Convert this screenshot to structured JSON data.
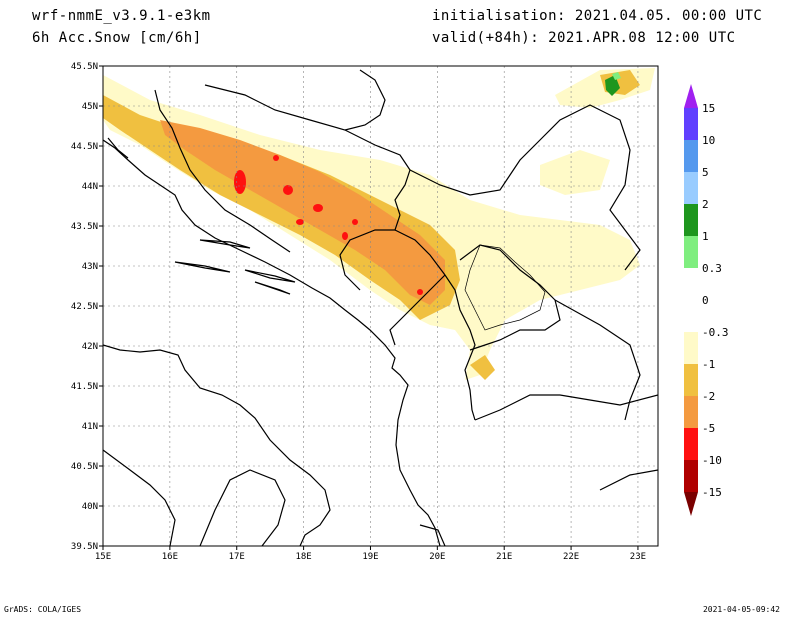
{
  "header": {
    "model": "wrf-nmmE_v3.9.1-e3km",
    "variable": "6h Acc.Snow [cm/6h]",
    "initialisation": "initialisation: 2021.04.05.  00:00 UTC",
    "valid": "valid(+84h): 2021.APR.08 12:00 UTC"
  },
  "footer": {
    "software": "GrADS: COLA/IGES",
    "timestamp": "2021-04-05-09:42"
  },
  "map": {
    "region": "Western Balkans",
    "lon_range": [
      15,
      23.3
    ],
    "lat_range": [
      39.5,
      45.5
    ],
    "lon_ticks": [
      "15E",
      "16E",
      "17E",
      "18E",
      "19E",
      "20E",
      "21E",
      "22E",
      "23E"
    ],
    "lat_ticks": [
      "39.5N",
      "40N",
      "40.5N",
      "41N",
      "41.5N",
      "42N",
      "42.5N",
      "43N",
      "43.5N",
      "44N",
      "44.5N",
      "45N",
      "45.5N"
    ],
    "grid": true,
    "colors": {
      "very_light": "#fffac8",
      "light": "#f0c040",
      "medium": "#f49a40",
      "heavy": "#ff1010",
      "coast": "#000000",
      "grid": "#888888"
    }
  },
  "colorbar": {
    "levels": [
      "15",
      "10",
      "5",
      "2",
      "1",
      "0.3",
      "0",
      "-0.3",
      "-1",
      "-2",
      "-5",
      "-10",
      "-15"
    ],
    "colors": [
      "#a020f0",
      "#6040ff",
      "#5599ee",
      "#99ccff",
      "#1e961e",
      "#7fee7f",
      "#ffffff",
      "#ffffff",
      "#fffac8",
      "#f0c040",
      "#f49a40",
      "#ff1010",
      "#b00000",
      "#7a0000"
    ],
    "top_arrow_color": "#a020f0",
    "bottom_arrow_color": "#7a0000"
  }
}
